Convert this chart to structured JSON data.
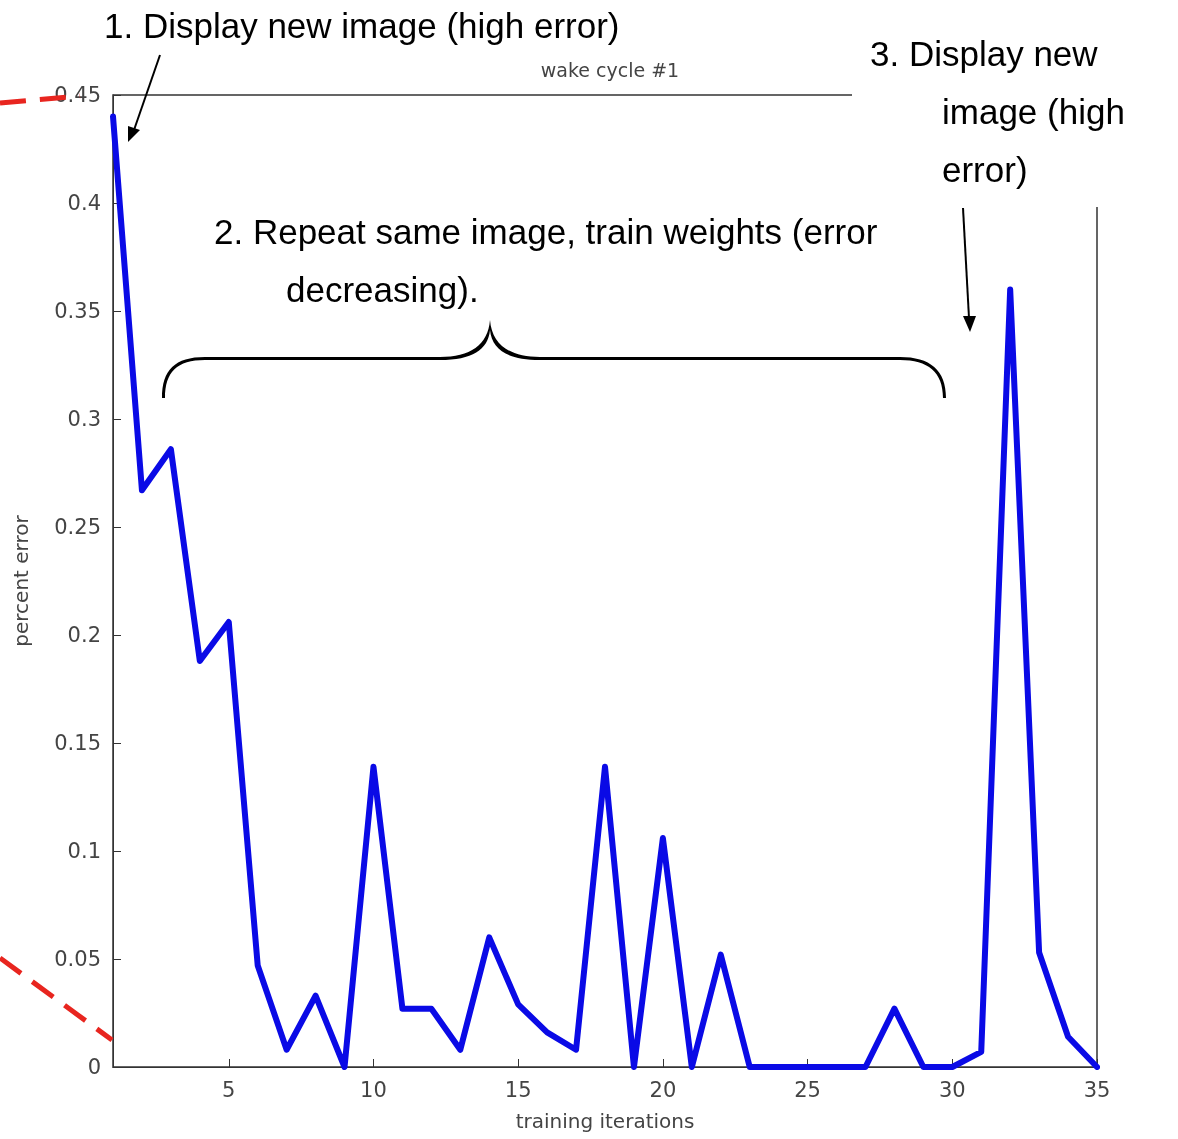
{
  "chart_data": {
    "type": "line",
    "title": "wake cycle #1",
    "xlabel": "training iterations",
    "ylabel": "percent error",
    "x": [
      1,
      2,
      3,
      4,
      5,
      6,
      7,
      8,
      9,
      10,
      11,
      12,
      13,
      14,
      15,
      16,
      17,
      18,
      19,
      20,
      21,
      22,
      23,
      24,
      25,
      26,
      27,
      28,
      29,
      30,
      31,
      32,
      33,
      34,
      35
    ],
    "series": [
      {
        "color": "#0a0ae6",
        "values": [
          0.44,
          0.267,
          0.286,
          0.188,
          0.206,
          0.047,
          0.008,
          0.033,
          0,
          0.139,
          0.027,
          0.027,
          0.008,
          0.06,
          0.029,
          0.016,
          0.008,
          0.139,
          0,
          0.106,
          0,
          0.052,
          0,
          0,
          0,
          0,
          0,
          0.027,
          0,
          0,
          0.007,
          0.36,
          0.053,
          0.014,
          0
        ]
      }
    ],
    "xlim": [
      1,
      35
    ],
    "xticks": [
      5,
      10,
      15,
      20,
      25,
      30,
      35
    ],
    "ylim": [
      0,
      0.45
    ],
    "yticks": [
      0,
      0.05,
      0.1,
      0.15,
      0.2,
      0.25,
      0.3,
      0.35,
      0.4,
      0.45
    ],
    "grid": false,
    "marker": "none",
    "line_style": "solid",
    "annotations": [
      "1. Display new image (high error)",
      "2. Repeat same image, train weights (error decreasing).",
      "3. Display new image (high error)"
    ]
  }
}
